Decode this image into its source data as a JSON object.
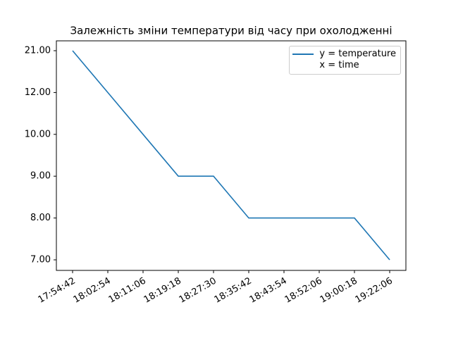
{
  "chart_data": {
    "type": "line",
    "title": "Залежність зміни температури від часу при охолодженні",
    "x": [
      "17:54:42",
      "18:02:54",
      "18:11:06",
      "18:19:18",
      "18:27:30",
      "18:35:42",
      "18:43:54",
      "18:52:06",
      "19:00:18",
      "19:22:06"
    ],
    "y_scale": "category",
    "series": [
      {
        "name": "y = temperature\nx = time",
        "color": "#1f77b4",
        "values": [
          21,
          12,
          10,
          9,
          9,
          8,
          8,
          8,
          8,
          7
        ]
      }
    ],
    "yticks": [
      {
        "value": 7,
        "label": "7.00"
      },
      {
        "value": 8,
        "label": "8.00"
      },
      {
        "value": 9,
        "label": "9.00"
      },
      {
        "value": 10,
        "label": "10.00"
      },
      {
        "value": 12,
        "label": "12.00"
      },
      {
        "value": 21,
        "label": "21.00"
      }
    ],
    "legend": "upper right"
  }
}
